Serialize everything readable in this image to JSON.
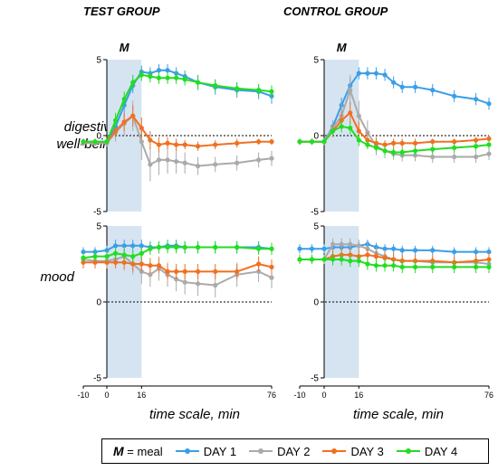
{
  "chart_data": [
    {
      "type": "line",
      "group": "TEST GROUP",
      "ylabel": "digestive well-being",
      "meal_window": [
        0,
        16
      ],
      "meal_label": "M",
      "x_ticks": [
        "-10",
        "0",
        "16",
        "76"
      ],
      "y_ticks": [
        "5",
        "0",
        "-5"
      ],
      "ylim": [
        -5,
        5
      ],
      "series": [
        {
          "name": "DAY 1",
          "color": "#3a9ee8",
          "x": [
            -10,
            -5,
            0,
            4,
            8,
            12,
            16,
            20,
            24,
            28,
            32,
            36,
            42,
            50,
            60,
            70,
            76
          ],
          "y": [
            -0.4,
            -0.4,
            -0.4,
            0.6,
            2.0,
            3.3,
            4.2,
            4.1,
            4.3,
            4.3,
            4.1,
            3.9,
            3.5,
            3.2,
            3.0,
            2.9,
            2.6
          ],
          "err": [
            0.2,
            0.2,
            0.2,
            0.4,
            0.5,
            0.5,
            0.4,
            0.4,
            0.4,
            0.4,
            0.4,
            0.4,
            0.5,
            0.5,
            0.5,
            0.5,
            0.5
          ]
        },
        {
          "name": "DAY 2",
          "color": "#aaaaaa",
          "x": [
            -10,
            -5,
            0,
            4,
            8,
            12,
            16,
            20,
            24,
            28,
            32,
            36,
            42,
            50,
            60,
            70,
            76
          ],
          "y": [
            -0.5,
            -0.5,
            -0.5,
            0.2,
            0.8,
            1.3,
            -0.4,
            -1.9,
            -1.6,
            -1.6,
            -1.7,
            -1.8,
            -2.0,
            -1.9,
            -1.8,
            -1.6,
            -1.5
          ],
          "err": [
            0.2,
            0.2,
            0.2,
            0.6,
            0.8,
            1.0,
            1.2,
            1.1,
            1.0,
            0.9,
            0.8,
            0.7,
            0.6,
            0.5,
            0.5,
            0.5,
            0.5
          ]
        },
        {
          "name": "DAY 3",
          "color": "#f07021",
          "x": [
            -10,
            -5,
            0,
            4,
            8,
            12,
            16,
            20,
            24,
            28,
            32,
            36,
            42,
            50,
            60,
            70,
            76
          ],
          "y": [
            -0.4,
            -0.4,
            -0.4,
            0.3,
            0.9,
            1.3,
            0.5,
            -0.3,
            -0.6,
            -0.5,
            -0.6,
            -0.6,
            -0.7,
            -0.6,
            -0.5,
            -0.4,
            -0.4
          ],
          "err": [
            0.2,
            0.2,
            0.2,
            0.4,
            0.6,
            0.7,
            0.7,
            0.6,
            0.5,
            0.4,
            0.4,
            0.3,
            0.3,
            0.3,
            0.3,
            0.2,
            0.2
          ]
        },
        {
          "name": "DAY 4",
          "color": "#22dd22",
          "x": [
            -10,
            -5,
            0,
            4,
            8,
            12,
            16,
            20,
            24,
            28,
            32,
            36,
            42,
            50,
            60,
            70,
            76
          ],
          "y": [
            -0.4,
            -0.4,
            -0.4,
            1.0,
            2.4,
            3.5,
            4.0,
            3.9,
            3.8,
            3.8,
            3.8,
            3.7,
            3.5,
            3.3,
            3.1,
            3.0,
            2.9
          ],
          "err": [
            0.2,
            0.2,
            0.2,
            0.5,
            0.5,
            0.5,
            0.4,
            0.4,
            0.4,
            0.4,
            0.4,
            0.4,
            0.4,
            0.4,
            0.4,
            0.4,
            0.4
          ]
        }
      ]
    },
    {
      "type": "line",
      "group": "CONTROL GROUP",
      "ylabel": "digestive well-being",
      "meal_window": [
        0,
        16
      ],
      "meal_label": "M",
      "x_ticks": [
        "-10",
        "0",
        "16",
        "76"
      ],
      "y_ticks": [
        "5",
        "0",
        "-5"
      ],
      "ylim": [
        -5,
        5
      ],
      "series": [
        {
          "name": "DAY 1",
          "color": "#3a9ee8",
          "x": [
            -10,
            -5,
            0,
            4,
            8,
            12,
            16,
            20,
            24,
            28,
            32,
            36,
            42,
            50,
            60,
            70,
            76
          ],
          "y": [
            -0.4,
            -0.4,
            -0.4,
            0.6,
            2.0,
            3.3,
            4.1,
            4.1,
            4.1,
            4.0,
            3.5,
            3.2,
            3.2,
            3.0,
            2.6,
            2.4,
            2.1
          ],
          "err": [
            0.2,
            0.2,
            0.2,
            0.4,
            0.5,
            0.5,
            0.4,
            0.4,
            0.4,
            0.4,
            0.4,
            0.4,
            0.4,
            0.4,
            0.4,
            0.4,
            0.4
          ]
        },
        {
          "name": "DAY 2",
          "color": "#aaaaaa",
          "x": [
            -10,
            -5,
            0,
            4,
            8,
            12,
            16,
            20,
            24,
            28,
            32,
            36,
            42,
            50,
            60,
            70,
            76
          ],
          "y": [
            -0.4,
            -0.4,
            -0.4,
            0.5,
            1.3,
            3.0,
            1.3,
            0.2,
            -0.7,
            -1.0,
            -1.2,
            -1.3,
            -1.3,
            -1.4,
            -1.4,
            -1.4,
            -1.2
          ],
          "err": [
            0.2,
            0.2,
            0.2,
            0.5,
            0.8,
            1.0,
            1.0,
            0.8,
            0.6,
            0.5,
            0.4,
            0.4,
            0.4,
            0.4,
            0.4,
            0.4,
            0.4
          ]
        },
        {
          "name": "DAY 3",
          "color": "#f07021",
          "x": [
            -10,
            -5,
            0,
            4,
            8,
            12,
            16,
            20,
            24,
            28,
            32,
            36,
            42,
            50,
            60,
            70,
            76
          ],
          "y": [
            -0.4,
            -0.4,
            -0.4,
            0.3,
            1.0,
            1.5,
            0.3,
            -0.3,
            -0.5,
            -0.6,
            -0.5,
            -0.5,
            -0.5,
            -0.4,
            -0.4,
            -0.3,
            -0.2
          ],
          "err": [
            0.2,
            0.2,
            0.2,
            0.4,
            0.6,
            0.7,
            0.6,
            0.5,
            0.4,
            0.3,
            0.3,
            0.3,
            0.3,
            0.2,
            0.2,
            0.2,
            0.2
          ]
        },
        {
          "name": "DAY 4",
          "color": "#22dd22",
          "x": [
            -10,
            -5,
            0,
            4,
            8,
            12,
            16,
            20,
            24,
            28,
            32,
            36,
            42,
            50,
            60,
            70,
            76
          ],
          "y": [
            -0.4,
            -0.4,
            -0.4,
            0.3,
            0.6,
            0.5,
            -0.3,
            -0.6,
            -0.8,
            -1.0,
            -1.1,
            -1.1,
            -1.0,
            -0.9,
            -0.8,
            -0.7,
            -0.6
          ],
          "err": [
            0.2,
            0.2,
            0.2,
            0.3,
            0.4,
            0.4,
            0.4,
            0.3,
            0.3,
            0.3,
            0.3,
            0.3,
            0.3,
            0.3,
            0.3,
            0.3,
            0.3
          ]
        }
      ]
    },
    {
      "type": "line",
      "group": "TEST GROUP",
      "ylabel": "mood",
      "meal_window": [
        0,
        16
      ],
      "x_ticks": [
        "-10",
        "0",
        "16",
        "76"
      ],
      "y_ticks": [
        "5",
        "0",
        "-5"
      ],
      "ylim": [
        -5,
        5
      ],
      "series": [
        {
          "name": "DAY 1",
          "color": "#3a9ee8",
          "x": [
            -10,
            -5,
            0,
            4,
            8,
            12,
            16,
            20,
            24,
            28,
            32,
            36,
            42,
            50,
            60,
            70,
            76
          ],
          "y": [
            3.3,
            3.3,
            3.4,
            3.7,
            3.7,
            3.7,
            3.7,
            3.6,
            3.6,
            3.7,
            3.7,
            3.6,
            3.6,
            3.6,
            3.6,
            3.6,
            3.5
          ],
          "err": [
            0.3,
            0.3,
            0.3,
            0.4,
            0.4,
            0.4,
            0.4,
            0.4,
            0.4,
            0.4,
            0.4,
            0.4,
            0.4,
            0.4,
            0.4,
            0.4,
            0.4
          ]
        },
        {
          "name": "DAY 2",
          "color": "#aaaaaa",
          "x": [
            -10,
            -5,
            0,
            4,
            8,
            12,
            16,
            20,
            24,
            28,
            32,
            36,
            42,
            50,
            60,
            70,
            76
          ],
          "y": [
            2.8,
            2.7,
            2.7,
            2.8,
            3.0,
            2.5,
            2.0,
            1.8,
            2.2,
            1.8,
            1.5,
            1.3,
            1.2,
            1.1,
            1.8,
            2.0,
            1.6
          ],
          "err": [
            0.4,
            0.4,
            0.4,
            0.5,
            0.6,
            0.7,
            0.8,
            0.8,
            0.8,
            0.8,
            0.8,
            0.8,
            0.8,
            0.8,
            0.8,
            0.7,
            0.7
          ]
        },
        {
          "name": "DAY 3",
          "color": "#f07021",
          "x": [
            -10,
            -5,
            0,
            4,
            8,
            12,
            16,
            20,
            24,
            28,
            32,
            36,
            42,
            50,
            60,
            70,
            76
          ],
          "y": [
            2.6,
            2.6,
            2.6,
            2.6,
            2.6,
            2.5,
            2.5,
            2.4,
            2.4,
            2.0,
            2.0,
            2.0,
            2.0,
            2.0,
            2.0,
            2.5,
            2.3
          ],
          "err": [
            0.4,
            0.4,
            0.4,
            0.4,
            0.5,
            0.5,
            0.5,
            0.5,
            0.5,
            0.5,
            0.5,
            0.5,
            0.5,
            0.5,
            0.5,
            0.5,
            0.5
          ]
        },
        {
          "name": "DAY 4",
          "color": "#22dd22",
          "x": [
            -10,
            -5,
            0,
            4,
            8,
            12,
            16,
            20,
            24,
            28,
            32,
            36,
            42,
            50,
            60,
            70,
            76
          ],
          "y": [
            2.9,
            3.0,
            3.0,
            3.2,
            3.1,
            3.0,
            3.2,
            3.5,
            3.6,
            3.6,
            3.6,
            3.6,
            3.6,
            3.6,
            3.6,
            3.5,
            3.5
          ],
          "err": [
            0.3,
            0.3,
            0.3,
            0.4,
            0.4,
            0.4,
            0.4,
            0.4,
            0.4,
            0.4,
            0.4,
            0.4,
            0.4,
            0.4,
            0.4,
            0.4,
            0.4
          ]
        }
      ]
    },
    {
      "type": "line",
      "group": "CONTROL GROUP",
      "ylabel": "mood",
      "meal_window": [
        0,
        16
      ],
      "x_ticks": [
        "-10",
        "0",
        "16",
        "76"
      ],
      "y_ticks": [
        "5",
        "0",
        "-5"
      ],
      "ylim": [
        -5,
        5
      ],
      "series": [
        {
          "name": "DAY 1",
          "color": "#3a9ee8",
          "x": [
            -10,
            -5,
            0,
            4,
            8,
            12,
            16,
            20,
            24,
            28,
            32,
            36,
            42,
            50,
            60,
            70,
            76
          ],
          "y": [
            3.5,
            3.5,
            3.5,
            3.6,
            3.6,
            3.6,
            3.7,
            3.8,
            3.6,
            3.5,
            3.5,
            3.4,
            3.4,
            3.4,
            3.3,
            3.3,
            3.3
          ],
          "err": [
            0.3,
            0.3,
            0.3,
            0.3,
            0.3,
            0.3,
            0.3,
            0.3,
            0.3,
            0.3,
            0.3,
            0.3,
            0.3,
            0.3,
            0.3,
            0.3,
            0.3
          ]
        },
        {
          "name": "DAY 2",
          "color": "#aaaaaa",
          "x": [
            -10,
            -5,
            0,
            4,
            8,
            12,
            16,
            20,
            24,
            28,
            32,
            36,
            42,
            50,
            60,
            70,
            76
          ],
          "y": [
            2.8,
            2.8,
            2.8,
            3.8,
            3.8,
            3.8,
            3.7,
            3.5,
            3.2,
            3.0,
            2.8,
            2.7,
            2.7,
            2.6,
            2.6,
            2.6,
            2.5
          ],
          "err": [
            0.3,
            0.3,
            0.3,
            0.4,
            0.4,
            0.4,
            0.4,
            0.4,
            0.4,
            0.4,
            0.4,
            0.4,
            0.4,
            0.4,
            0.4,
            0.4,
            0.4
          ]
        },
        {
          "name": "DAY 3",
          "color": "#f07021",
          "x": [
            -10,
            -5,
            0,
            4,
            8,
            12,
            16,
            20,
            24,
            28,
            32,
            36,
            42,
            50,
            60,
            70,
            76
          ],
          "y": [
            2.8,
            2.8,
            2.8,
            3.0,
            3.1,
            3.1,
            3.0,
            3.1,
            3.0,
            2.9,
            2.8,
            2.7,
            2.7,
            2.7,
            2.6,
            2.7,
            2.8
          ],
          "err": [
            0.3,
            0.3,
            0.3,
            0.4,
            0.4,
            0.4,
            0.4,
            0.4,
            0.4,
            0.4,
            0.4,
            0.4,
            0.4,
            0.4,
            0.4,
            0.4,
            0.4
          ]
        },
        {
          "name": "DAY 4",
          "color": "#22dd22",
          "x": [
            -10,
            -5,
            0,
            4,
            8,
            12,
            16,
            20,
            24,
            28,
            32,
            36,
            42,
            50,
            60,
            70,
            76
          ],
          "y": [
            2.8,
            2.8,
            2.8,
            2.8,
            2.8,
            2.7,
            2.7,
            2.5,
            2.4,
            2.4,
            2.4,
            2.3,
            2.3,
            2.3,
            2.3,
            2.3,
            2.3
          ],
          "err": [
            0.3,
            0.3,
            0.3,
            0.4,
            0.4,
            0.4,
            0.4,
            0.4,
            0.4,
            0.4,
            0.4,
            0.4,
            0.4,
            0.4,
            0.4,
            0.4,
            0.4
          ]
        }
      ]
    }
  ],
  "labels": {
    "test_group": "TEST GROUP",
    "control_group": "CONTROL GROUP",
    "row1_line1": "digestive",
    "row1_line2": "well-being",
    "row2": "mood",
    "xlabel": "time scale, min"
  },
  "legend": {
    "meal_symbol": "M",
    "meal_text": "= meal",
    "items": [
      {
        "name": "DAY 1",
        "color": "#3a9ee8"
      },
      {
        "name": "DAY 2",
        "color": "#aaaaaa"
      },
      {
        "name": "DAY 3",
        "color": "#f07021"
      },
      {
        "name": "DAY 4",
        "color": "#22dd22"
      }
    ]
  }
}
